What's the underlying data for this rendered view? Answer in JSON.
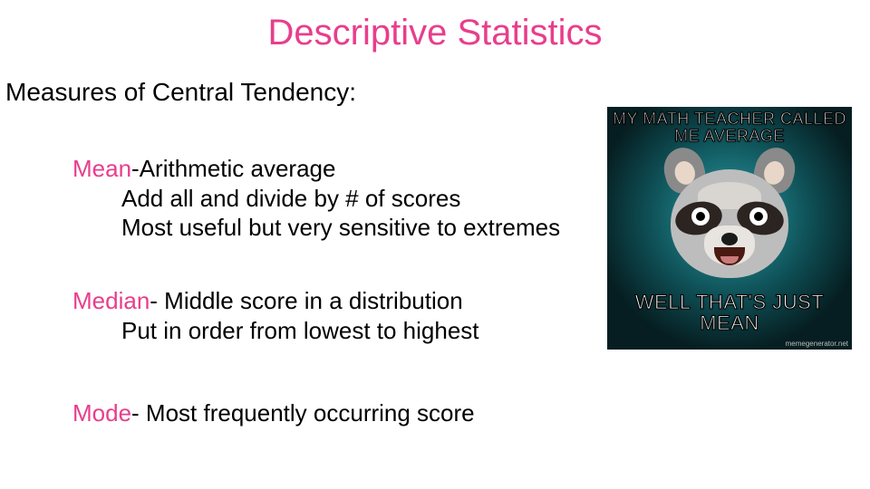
{
  "colors": {
    "accent": "#e83e8c",
    "text": "#000000",
    "background": "#ffffff",
    "meme_bg": "#000000",
    "meme_text": "#ffffff"
  },
  "typography": {
    "title_fontsize": 40,
    "subtitle_fontsize": 28,
    "body_fontsize": 26,
    "font_family": "Arial"
  },
  "title": "Descriptive Statistics",
  "subtitle": "Measures of Central Tendency:",
  "items": [
    {
      "term": "Mean",
      "definition": "-Arithmetic average",
      "sublines": [
        "Add all and divide by # of scores",
        "Most useful but very sensitive to extremes"
      ]
    },
    {
      "term": "Median",
      "definition": "- Middle score in a distribution",
      "sublines": [
        "Put in order from lowest to highest"
      ]
    },
    {
      "term": "Mode",
      "definition": "- Most frequently occurring score",
      "sublines": []
    }
  ],
  "meme": {
    "top_text": "MY MATH TEACHER CALLED ME AVERAGE",
    "bottom_text": "WELL THAT'S JUST MEAN",
    "watermark": "memegenerator.net",
    "character": "lame-pun-raccoon"
  }
}
